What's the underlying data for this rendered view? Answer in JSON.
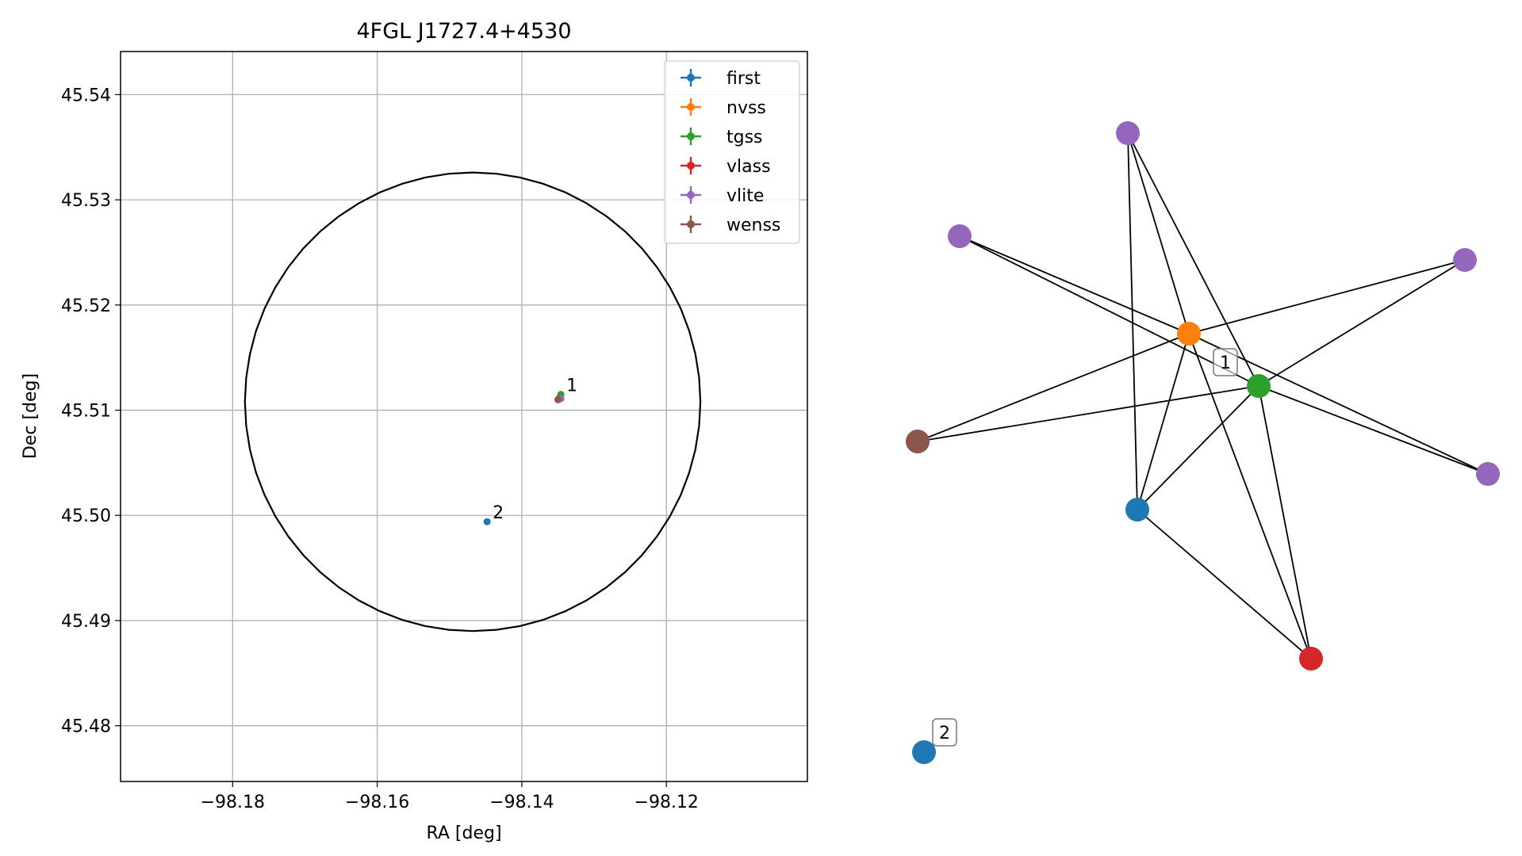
{
  "chart_data": [
    {
      "type": "scatter",
      "title": "4FGL J1727.4+4530",
      "xlabel": "RA [deg]",
      "ylabel": "Dec [deg]",
      "xlim": [
        -98.1955,
        -98.1005
      ],
      "ylim": [
        45.4747,
        45.5441
      ],
      "x_ticks": [
        -98.18,
        -98.16,
        -98.14,
        -98.12
      ],
      "x_tick_labels": [
        "−98.18",
        "−98.16",
        "−98.14",
        "−98.12"
      ],
      "y_ticks": [
        45.48,
        45.49,
        45.5,
        45.51,
        45.52,
        45.53,
        45.54
      ],
      "y_tick_labels": [
        "45.48",
        "45.49",
        "45.50",
        "45.51",
        "45.52",
        "45.53",
        "45.54"
      ],
      "grid": true,
      "legend_position": "top-right",
      "circle": {
        "ra_center": -98.1468,
        "dec_center": 45.5108,
        "ra_radius": 0.0315,
        "dec_radius": 0.0218
      },
      "series": [
        {
          "name": "first",
          "color": "#1f77b4",
          "points": [
            {
              "x": -98.1448,
              "y": 45.4994
            }
          ]
        },
        {
          "name": "nvss",
          "color": "#ff7f0e",
          "points": [
            {
              "x": -98.1348,
              "y": 45.5112
            }
          ]
        },
        {
          "name": "tgss",
          "color": "#2ca02c",
          "points": [
            {
              "x": -98.1346,
              "y": 45.5115
            }
          ]
        },
        {
          "name": "vlass",
          "color": "#d62728",
          "points": [
            {
              "x": -98.1347,
              "y": 45.5111
            }
          ]
        },
        {
          "name": "vlite",
          "color": "#9467bd",
          "points": [
            {
              "x": -98.1346,
              "y": 45.5111
            }
          ]
        },
        {
          "name": "wenss",
          "color": "#8c564b",
          "points": [
            {
              "x": -98.135,
              "y": 45.511
            }
          ]
        }
      ],
      "annotations": [
        {
          "text": "1",
          "x": -98.1346,
          "y": 45.5115
        },
        {
          "text": "2",
          "x": -98.1448,
          "y": 45.4994
        }
      ]
    },
    {
      "type": "network",
      "nodes": [
        {
          "id": "vlite_a",
          "color": "#9467bd"
        },
        {
          "id": "vlite_b",
          "color": "#9467bd"
        },
        {
          "id": "vlite_c",
          "color": "#9467bd"
        },
        {
          "id": "vlite_d",
          "color": "#9467bd"
        },
        {
          "id": "nvss",
          "color": "#ff7f0e"
        },
        {
          "id": "tgss",
          "color": "#2ca02c"
        },
        {
          "id": "wenss",
          "color": "#8c564b"
        },
        {
          "id": "first_1",
          "color": "#1f77b4"
        },
        {
          "id": "vlass",
          "color": "#d62728"
        },
        {
          "id": "first_2",
          "color": "#1f77b4"
        }
      ],
      "edges": [
        [
          "vlite_a",
          "nvss"
        ],
        [
          "vlite_a",
          "tgss"
        ],
        [
          "vlite_b",
          "first_1"
        ],
        [
          "vlite_b",
          "nvss"
        ],
        [
          "vlite_b",
          "tgss"
        ],
        [
          "vlite_c",
          "nvss"
        ],
        [
          "vlite_c",
          "tgss"
        ],
        [
          "vlite_d",
          "nvss"
        ],
        [
          "vlite_d",
          "tgss"
        ],
        [
          "wenss",
          "nvss"
        ],
        [
          "wenss",
          "tgss"
        ],
        [
          "first_1",
          "nvss"
        ],
        [
          "first_1",
          "tgss"
        ],
        [
          "first_1",
          "vlass"
        ],
        [
          "nvss",
          "vlass"
        ],
        [
          "tgss",
          "vlass"
        ]
      ],
      "cluster_labels": [
        {
          "text": "1"
        },
        {
          "text": "2"
        }
      ]
    }
  ]
}
